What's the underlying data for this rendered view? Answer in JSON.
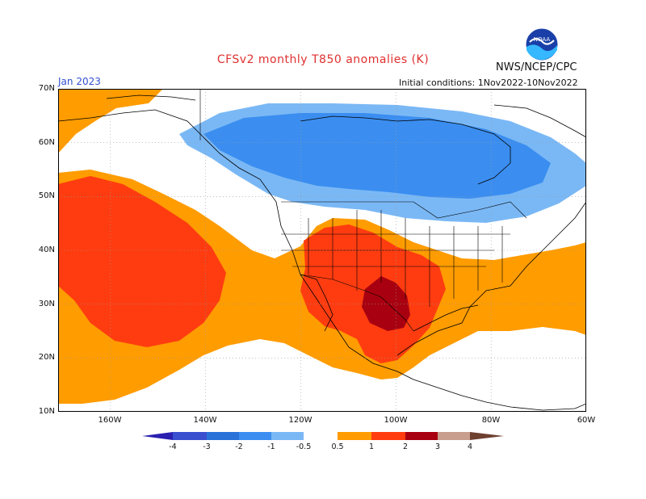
{
  "header": {
    "title": "CFSv2 monthly T850 anomalies (K)",
    "agency": "NWS/NCEP/CPC",
    "logo_text": "NOAA",
    "month": "Jan 2023",
    "initial_conditions": "Initial conditions: 1Nov2022-10Nov2022"
  },
  "axes": {
    "lat_labels": [
      "70N",
      "60N",
      "50N",
      "40N",
      "30N",
      "20N",
      "10N"
    ],
    "lon_labels": [
      "160W",
      "140W",
      "120W",
      "100W",
      "80W",
      "60W"
    ],
    "lat_range": [
      10,
      70
    ],
    "lon_range": [
      -171,
      -60
    ]
  },
  "colorbar": {
    "labels": [
      "-4",
      "-3",
      "-2",
      "-1",
      "-0.5",
      "0.5",
      "1",
      "2",
      "3",
      "4"
    ],
    "colors": [
      "#2a1fb0",
      "#3a4fd0",
      "#2a72d8",
      "#3b8ef0",
      "#7ab8f5",
      "#ffffff",
      "#ff9c00",
      "#ff3c10",
      "#a80010",
      "#c89e8e",
      "#6e4030"
    ]
  },
  "anomaly_regions": [
    {
      "label": "negative -1 to -0.5",
      "color": "#7ab8f5"
    },
    {
      "label": "negative -2 to -1",
      "color": "#3b8ef0"
    },
    {
      "label": "positive 0.5 to 1",
      "color": "#ff9c00"
    },
    {
      "label": "positive 1 to 2",
      "color": "#ff3c10"
    },
    {
      "label": "positive 2 to 3",
      "color": "#a80010"
    }
  ]
}
